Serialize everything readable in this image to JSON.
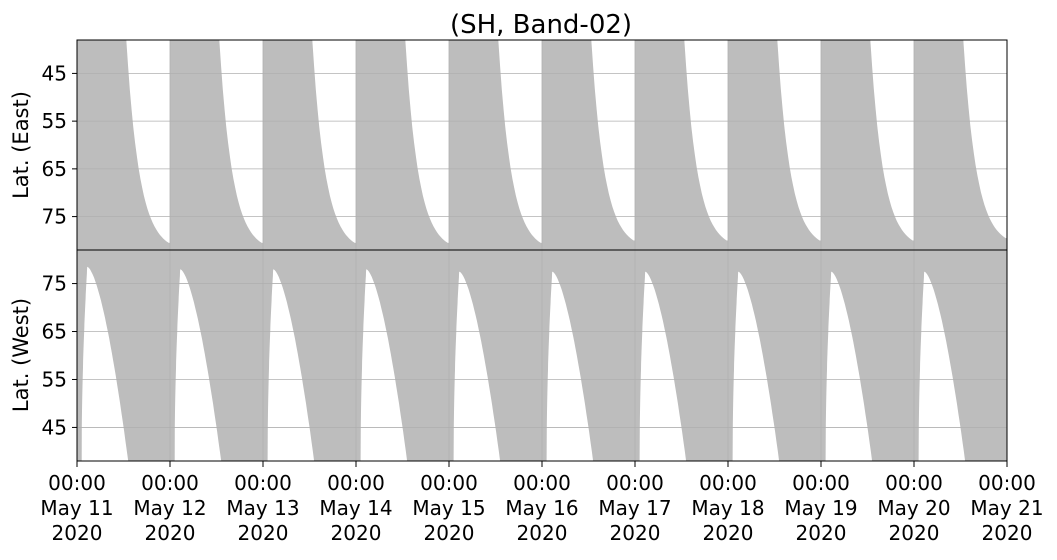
{
  "chart_data": {
    "type": "area",
    "title": "(SH, Band-02)",
    "fill_color": "#bdbdbd",
    "grid": true,
    "x_ticks": [
      {
        "time": "00:00",
        "date": "May 11",
        "year": "2020"
      },
      {
        "time": "00:00",
        "date": "May 12",
        "year": "2020"
      },
      {
        "time": "00:00",
        "date": "May 13",
        "year": "2020"
      },
      {
        "time": "00:00",
        "date": "May 14",
        "year": "2020"
      },
      {
        "time": "00:00",
        "date": "May 15",
        "year": "2020"
      },
      {
        "time": "00:00",
        "date": "May 16",
        "year": "2020"
      },
      {
        "time": "00:00",
        "date": "May 17",
        "year": "2020"
      },
      {
        "time": "00:00",
        "date": "May 18",
        "year": "2020"
      },
      {
        "time": "00:00",
        "date": "May 19",
        "year": "2020"
      },
      {
        "time": "00:00",
        "date": "May 20",
        "year": "2020"
      },
      {
        "time": "00:00",
        "date": "May 21",
        "year": "2020"
      }
    ],
    "xlim": [
      "2020-05-11T00:00",
      "2020-05-21T00:00"
    ],
    "panels": [
      {
        "id": "east",
        "ylabel": "Lat. (East)",
        "ylim": [
          82,
          38
        ],
        "yticks": [
          45,
          55,
          65,
          75
        ],
        "daily_coverage": [
          {
            "day": "May 11",
            "bottom_lat": 80.5,
            "top_lat": 43,
            "gap_start_frac": 0.53,
            "gap_end_frac": 0.985
          },
          {
            "day": "May 12",
            "bottom_lat": 80.5,
            "top_lat": 43,
            "gap_start_frac": 0.53,
            "gap_end_frac": 0.985
          },
          {
            "day": "May 13",
            "bottom_lat": 80.5,
            "top_lat": 43,
            "gap_start_frac": 0.53,
            "gap_end_frac": 0.985
          },
          {
            "day": "May 14",
            "bottom_lat": 80.5,
            "top_lat": 43,
            "gap_start_frac": 0.53,
            "gap_end_frac": 0.985
          },
          {
            "day": "May 15",
            "bottom_lat": 80.5,
            "top_lat": 43,
            "gap_start_frac": 0.53,
            "gap_end_frac": 0.985
          },
          {
            "day": "May 16",
            "bottom_lat": 80,
            "top_lat": 43,
            "gap_start_frac": 0.53,
            "gap_end_frac": 0.985
          },
          {
            "day": "May 17",
            "bottom_lat": 80,
            "top_lat": 43,
            "gap_start_frac": 0.53,
            "gap_end_frac": 0.985
          },
          {
            "day": "May 18",
            "bottom_lat": 80,
            "top_lat": 43,
            "gap_start_frac": 0.53,
            "gap_end_frac": 0.985
          },
          {
            "day": "May 19",
            "bottom_lat": 80,
            "top_lat": 43,
            "gap_start_frac": 0.53,
            "gap_end_frac": 0.985
          },
          {
            "day": "May 20",
            "bottom_lat": 79.5,
            "top_lat": 43,
            "gap_start_frac": 0.53,
            "gap_end_frac": 0.985
          }
        ]
      },
      {
        "id": "west",
        "ylabel": "Lat. (West)",
        "ylim": [
          82,
          38
        ],
        "yticks": [
          75,
          65,
          55,
          45
        ],
        "daily_coverage": [
          {
            "day": "May 11",
            "peak_lat": 78.5,
            "gap_start_frac": 0.05,
            "gap_end_frac": 0.55
          },
          {
            "day": "May 12",
            "peak_lat": 78,
            "gap_start_frac": 0.05,
            "gap_end_frac": 0.55
          },
          {
            "day": "May 13",
            "peak_lat": 78,
            "gap_start_frac": 0.05,
            "gap_end_frac": 0.55
          },
          {
            "day": "May 14",
            "peak_lat": 78,
            "gap_start_frac": 0.05,
            "gap_end_frac": 0.55
          },
          {
            "day": "May 15",
            "peak_lat": 77.5,
            "gap_start_frac": 0.05,
            "gap_end_frac": 0.55
          },
          {
            "day": "May 16",
            "peak_lat": 77.5,
            "gap_start_frac": 0.05,
            "gap_end_frac": 0.55
          },
          {
            "day": "May 17",
            "peak_lat": 77.5,
            "gap_start_frac": 0.05,
            "gap_end_frac": 0.55
          },
          {
            "day": "May 18",
            "peak_lat": 77.5,
            "gap_start_frac": 0.05,
            "gap_end_frac": 0.55
          },
          {
            "day": "May 19",
            "peak_lat": 77.5,
            "gap_start_frac": 0.05,
            "gap_end_frac": 0.55
          },
          {
            "day": "May 20",
            "peak_lat": 77.5,
            "gap_start_frac": 0.05,
            "gap_end_frac": 0.55
          }
        ]
      }
    ]
  }
}
